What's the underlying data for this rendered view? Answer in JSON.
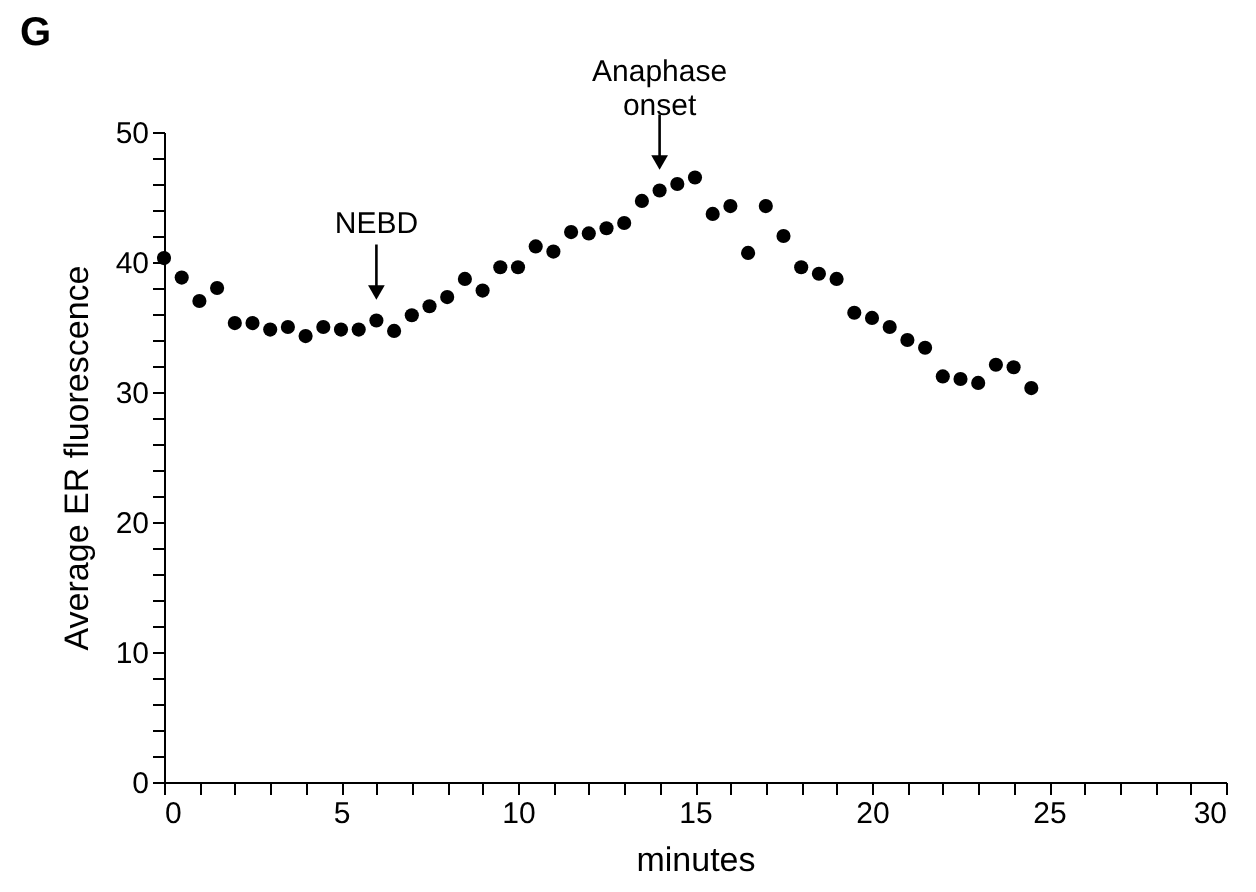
{
  "chart_data": {
    "type": "scatter",
    "title": "G",
    "xlabel": "minutes",
    "ylabel": "Average ER fluorescence",
    "x": [
      0,
      0.5,
      1,
      1.5,
      2,
      2.5,
      3,
      3.5,
      4,
      4.5,
      5,
      5.5,
      6,
      6.5,
      7,
      7.5,
      8,
      8.5,
      9,
      9.5,
      10,
      10.5,
      11,
      11.5,
      12,
      12.5,
      13,
      13.5,
      14,
      14.5,
      15,
      15.5,
      16,
      16.5,
      17,
      17.5,
      18,
      18.5,
      19,
      19.5,
      20,
      20.5,
      21,
      21.5,
      22,
      22.5,
      23,
      23.5,
      24,
      24.5
    ],
    "series": [
      {
        "color": "#000000",
        "values": [
          40.3,
          38.8,
          37,
          38,
          35.3,
          35.3,
          34.8,
          35,
          34.3,
          35,
          34.8,
          34.8,
          35.5,
          34.7,
          35.9,
          36.6,
          37.3,
          38.7,
          37.8,
          39.6,
          39.6,
          41.2,
          40.8,
          42.3,
          42.2,
          42.6,
          43,
          44.7,
          45.5,
          46,
          46.5,
          43.7,
          44.3,
          40.7,
          44.3,
          42,
          39.6,
          39.1,
          38.7,
          36.1,
          35.7,
          35,
          34,
          33.4,
          31.2,
          31,
          30.7,
          32.1,
          31.9,
          30.3
        ]
      }
    ],
    "xlim": [
      0,
      30
    ],
    "ylim": [
      0,
      50
    ],
    "xticks": [
      0,
      {
        "value": 1,
        "label": null
      },
      {
        "value": 2,
        "label": null
      },
      {
        "value": 3,
        "label": null
      },
      {
        "value": 4,
        "label": null
      },
      5,
      {
        "value": 6,
        "label": null
      },
      {
        "value": 7,
        "label": null
      },
      {
        "value": 8,
        "label": null
      },
      {
        "value": 9,
        "label": null
      },
      10,
      {
        "value": 11,
        "label": null
      },
      {
        "value": 12,
        "label": null
      },
      {
        "value": 13,
        "label": null
      },
      {
        "value": 14,
        "label": null
      },
      15,
      {
        "value": 16,
        "label": null
      },
      {
        "value": 17,
        "label": null
      },
      {
        "value": 18,
        "label": null
      },
      {
        "value": 19,
        "label": null
      },
      20,
      {
        "value": 21,
        "label": null
      },
      {
        "value": 22,
        "label": null
      },
      {
        "value": 23,
        "label": null
      },
      {
        "value": 24,
        "label": null
      },
      25,
      {
        "value": 26,
        "label": null
      },
      {
        "value": 27,
        "label": null
      },
      {
        "value": 28,
        "label": null
      },
      {
        "value": 29,
        "label": null
      },
      30
    ],
    "yticks": [
      0,
      {
        "value": 2,
        "label": null
      },
      {
        "value": 4,
        "label": null
      },
      {
        "value": 6,
        "label": null
      },
      {
        "value": 8,
        "label": null
      },
      10,
      {
        "value": 12,
        "label": null
      },
      {
        "value": 14,
        "label": null
      },
      {
        "value": 16,
        "label": null
      },
      {
        "value": 18,
        "label": null
      },
      20,
      {
        "value": 22,
        "label": null
      },
      {
        "value": 24,
        "label": null
      },
      {
        "value": 26,
        "label": null
      },
      {
        "value": 28,
        "label": null
      },
      30,
      {
        "value": 32,
        "label": null
      },
      {
        "value": 34,
        "label": null
      },
      {
        "value": 36,
        "label": null
      },
      {
        "value": 38,
        "label": null
      },
      40,
      {
        "value": 42,
        "label": null
      },
      {
        "value": 44,
        "label": null
      },
      {
        "value": 46,
        "label": null
      },
      {
        "value": 48,
        "label": null
      },
      50
    ],
    "annotations": [
      {
        "text": "NEBD",
        "x": 6,
        "y": 35.5
      },
      {
        "text": "Anaphase\nonset",
        "x": 14,
        "y": 45.5
      }
    ],
    "grid": false,
    "marker": "circle"
  }
}
